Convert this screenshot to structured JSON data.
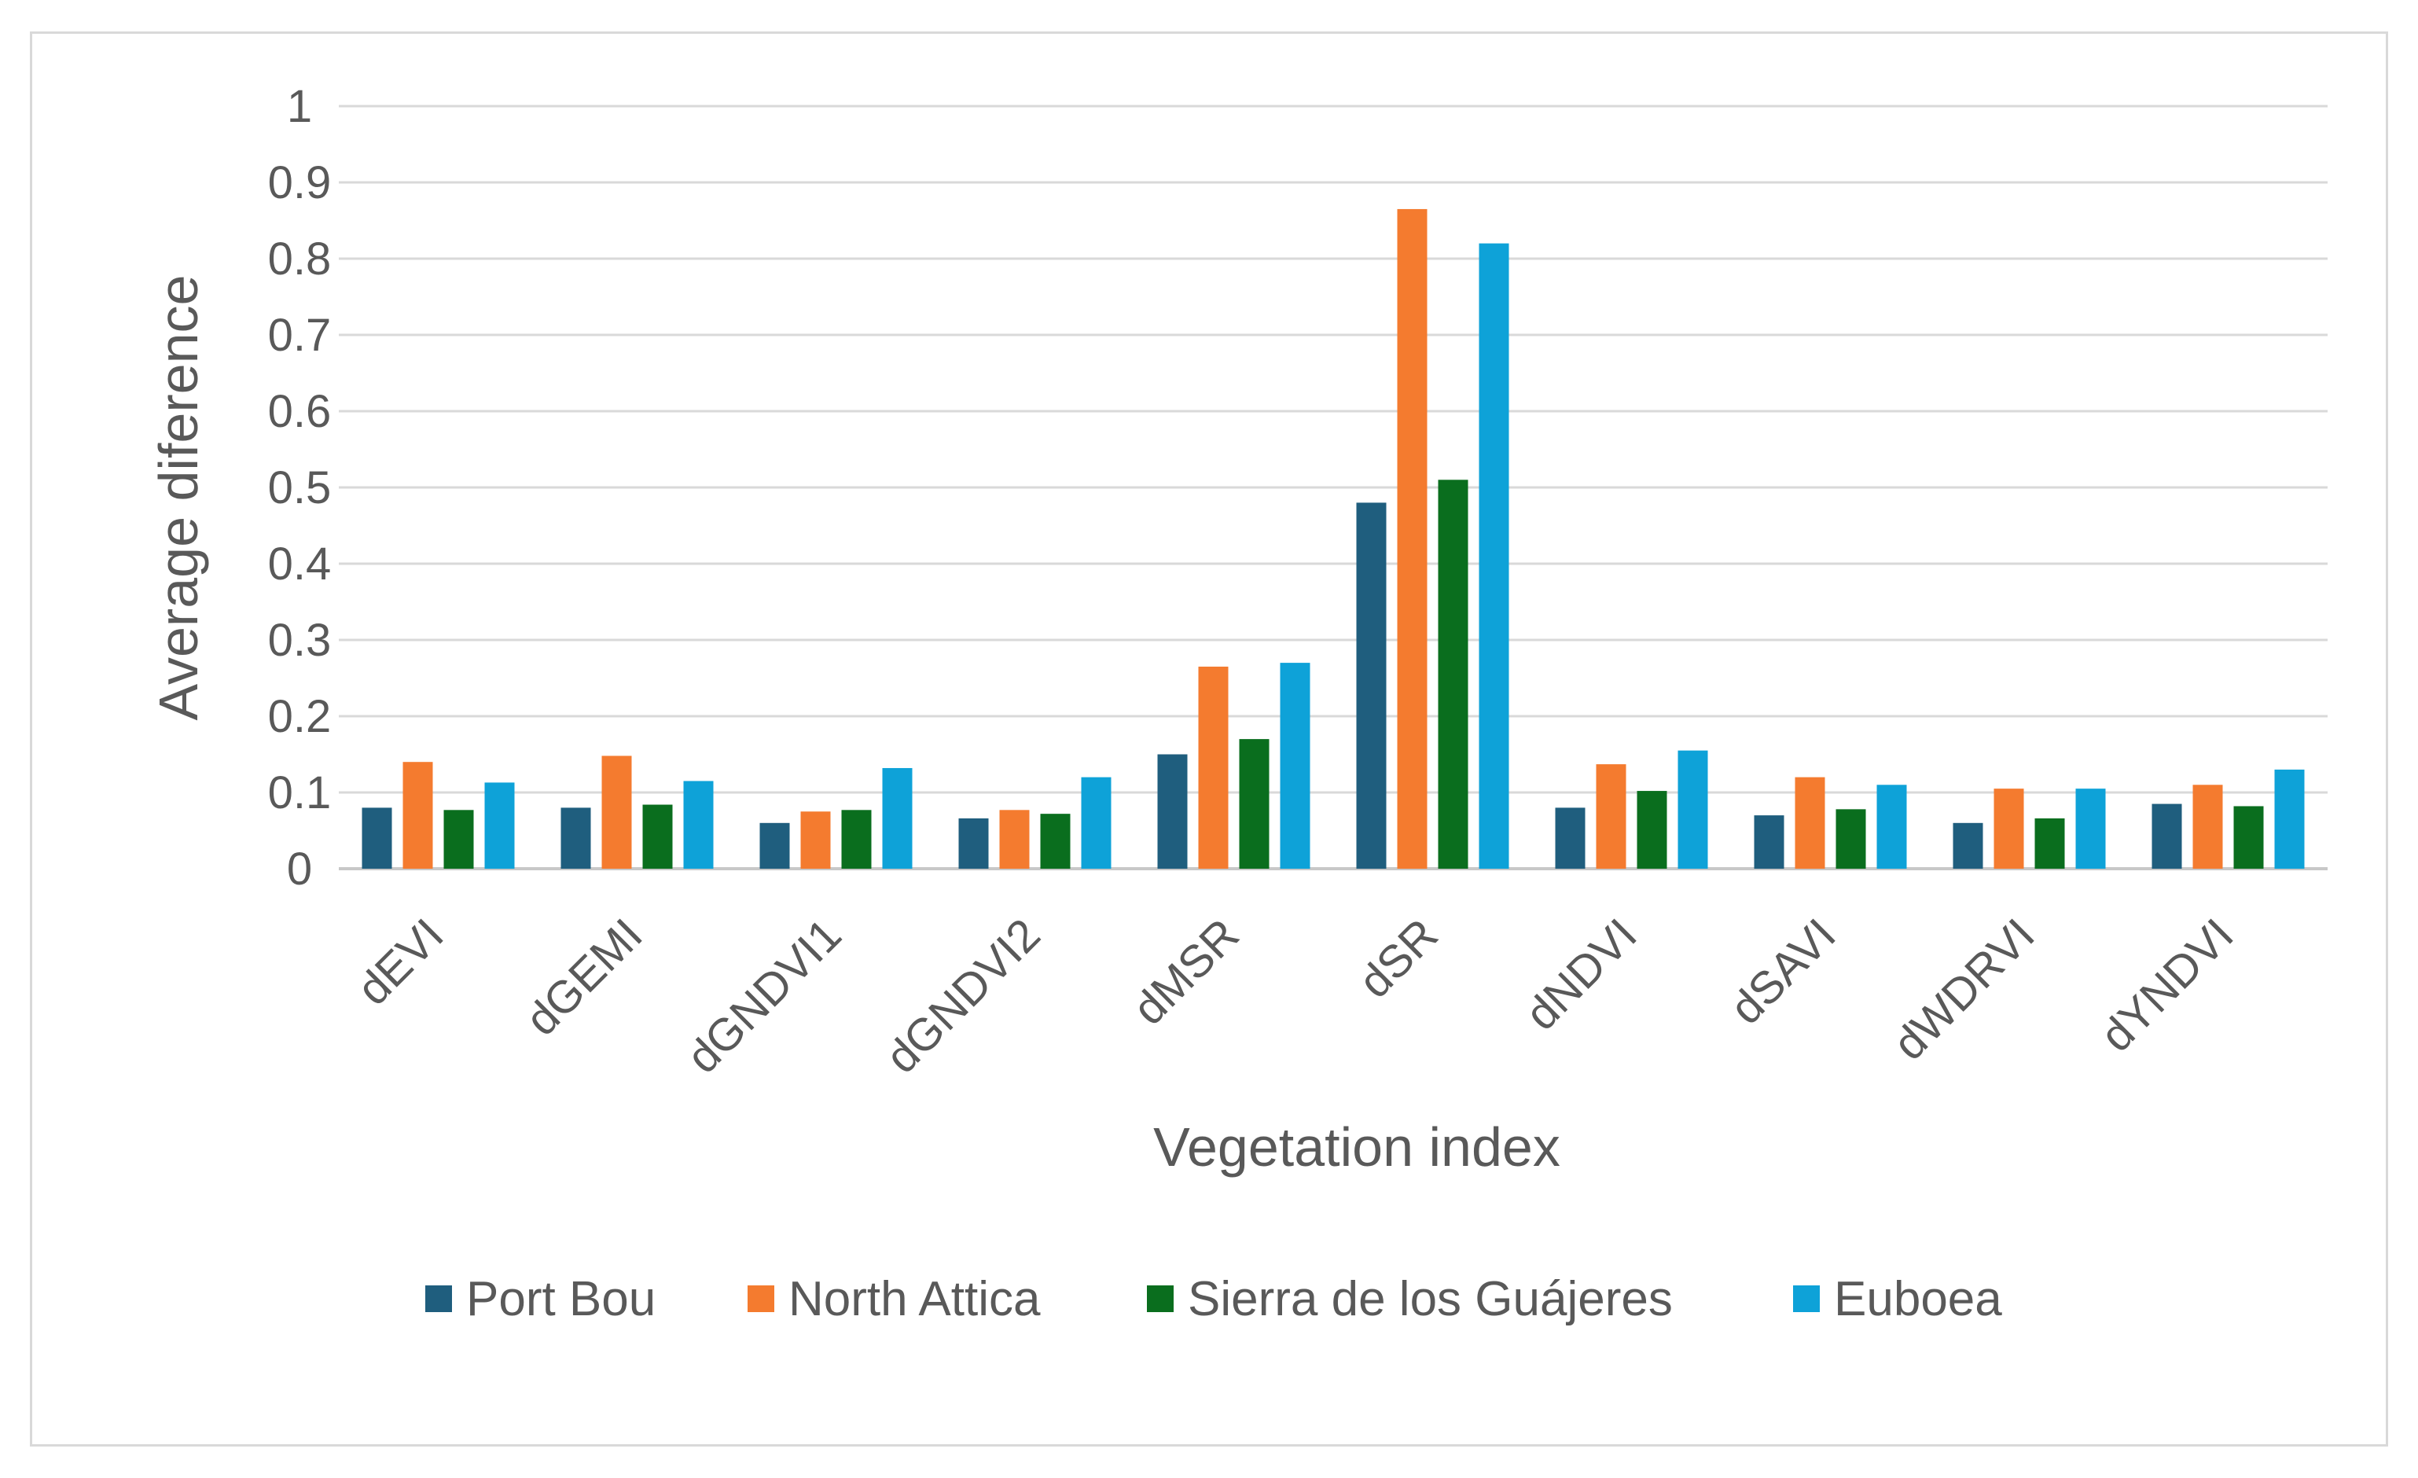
{
  "chart_data": {
    "type": "bar",
    "title": "",
    "xlabel": "Vegetation index",
    "ylabel": "Average diference",
    "ylim": [
      0,
      1
    ],
    "yticks": [
      "0",
      "0.1",
      "0.2",
      "0.3",
      "0.4",
      "0.5",
      "0.6",
      "0.7",
      "0.8",
      "0.9",
      "1"
    ],
    "grid": true,
    "legend_position": "bottom",
    "categories": [
      "dEVI",
      "dGEMI",
      "dGNDVI1",
      "dGNDVI2",
      "dMSR",
      "dSR",
      "dNDVI",
      "dSAVI",
      "dWDRVI",
      "dYNDVI"
    ],
    "series": [
      {
        "name": "Port Bou",
        "color": "#1f5e7e",
        "values": [
          0.08,
          0.08,
          0.06,
          0.066,
          0.15,
          0.48,
          0.08,
          0.07,
          0.06,
          0.085
        ]
      },
      {
        "name": "North Attica",
        "color": "#f47b2f",
        "values": [
          0.14,
          0.148,
          0.075,
          0.077,
          0.265,
          0.865,
          0.137,
          0.12,
          0.105,
          0.11
        ]
      },
      {
        "name": "Sierra de los Guájeres",
        "color": "#0a6e1e",
        "values": [
          0.077,
          0.084,
          0.077,
          0.072,
          0.17,
          0.51,
          0.102,
          0.078,
          0.066,
          0.082
        ]
      },
      {
        "name": "Euboea",
        "color": "#0ea2d8",
        "values": [
          0.113,
          0.115,
          0.132,
          0.12,
          0.27,
          0.82,
          0.155,
          0.11,
          0.105,
          0.13
        ]
      }
    ]
  }
}
